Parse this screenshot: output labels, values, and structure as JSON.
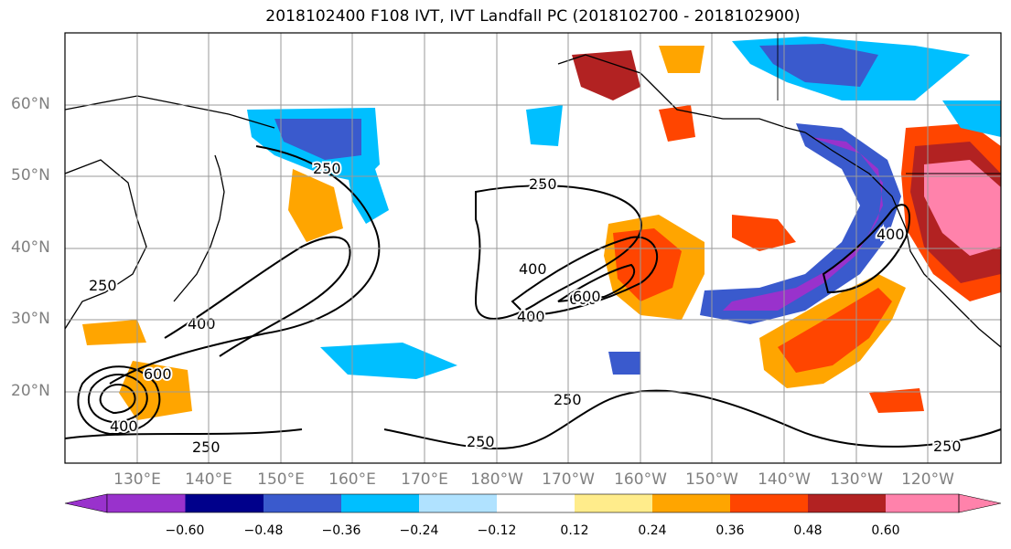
{
  "title": "2018102400 F108 IVT, IVT Landfall PC (2018102700 - 2018102900)",
  "map": {
    "lat_labels": [
      "60°N",
      "50°N",
      "40°N",
      "30°N",
      "20°N"
    ],
    "lon_labels": [
      "130°E",
      "140°E",
      "150°E",
      "160°E",
      "170°E",
      "180°W",
      "170°W",
      "160°W",
      "150°W",
      "140°W",
      "130°W",
      "120°W"
    ],
    "contour_labels": [
      "250",
      "400",
      "600",
      "400",
      "600",
      "250",
      "250",
      "400",
      "600",
      "400",
      "250",
      "250",
      "250",
      "400",
      "250"
    ]
  },
  "colorbar": {
    "ticks": [
      "−0.60",
      "−0.48",
      "−0.36",
      "−0.24",
      "−0.12",
      "0.12",
      "0.24",
      "0.36",
      "0.48",
      "0.60"
    ],
    "colors": [
      "#9932CC",
      "#00008B",
      "#3A5ACD",
      "#00BFFF",
      "#B0E2FF",
      "#FFFFFF",
      "#FFEC8B",
      "#FFA500",
      "#FF4500",
      "#B22222",
      "#FF82AB"
    ]
  }
}
